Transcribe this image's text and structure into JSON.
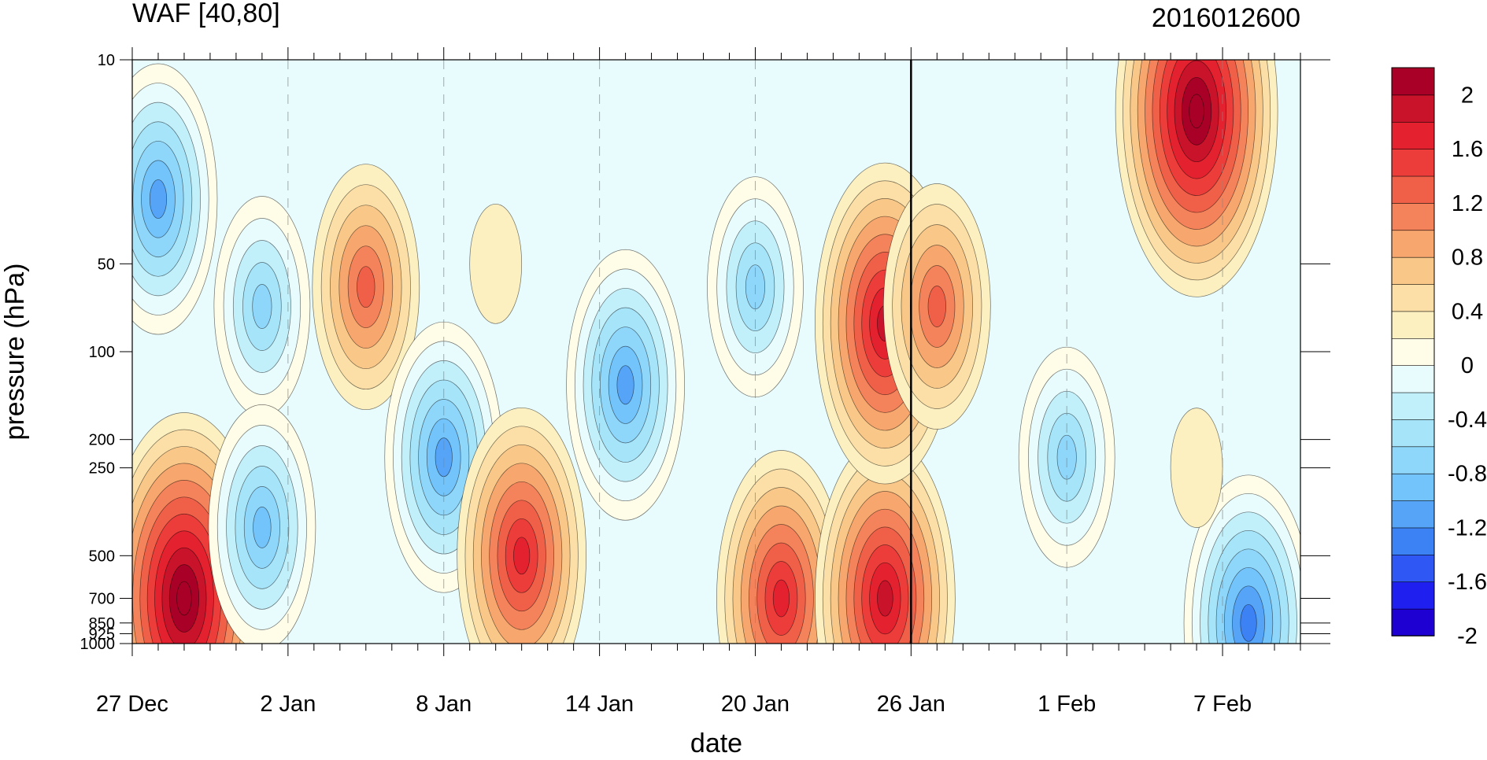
{
  "chart_data": {
    "type": "heatmap",
    "title": "WAF [40,80]",
    "subtitle": "2016012600",
    "xlabel": "date",
    "ylabel": "pressure (hPa)",
    "x_ticks": [
      "27 Dec",
      "2 Jan",
      "8 Jan",
      "14 Jan",
      "20 Jan",
      "26 Jan",
      "1 Feb",
      "7 Feb"
    ],
    "x_range": [
      "2015-12-27",
      "2016-02-10"
    ],
    "y_ticks": [
      10,
      50,
      100,
      200,
      250,
      500,
      700,
      850,
      925,
      1000
    ],
    "y_ticklabels": [
      "10",
      "50",
      "100",
      "200",
      "250",
      "500",
      "700",
      "850",
      "925",
      "1000"
    ],
    "y_scale": "log",
    "y_range": [
      1000,
      10
    ],
    "marker_date": "2016-01-26",
    "colorbar": {
      "labels": [
        "2",
        "1.6",
        "1.2",
        "0.8",
        "0.4",
        "0",
        "-0.4",
        "-0.8",
        "-1.2",
        "-1.6",
        "-2"
      ],
      "levels": [
        -2.2,
        -2.0,
        -1.8,
        -1.6,
        -1.4,
        -1.2,
        -1.0,
        -0.8,
        -0.6,
        -0.4,
        -0.2,
        0,
        0.2,
        0.4,
        0.6,
        0.8,
        1.0,
        1.2,
        1.4,
        1.6,
        1.8,
        2.0,
        2.2
      ],
      "colors": [
        "#1e00d2",
        "#1f20f0",
        "#2e57f4",
        "#3d82f4",
        "#56a4f7",
        "#73c4fb",
        "#8fd6fb",
        "#a6e4fa",
        "#c2f0fa",
        "#e8fbfd",
        "#fffde8",
        "#fdf0c0",
        "#fbdfa6",
        "#f9c889",
        "#f7a76e",
        "#f4825a",
        "#f06049",
        "#ec3d3a",
        "#e3212f",
        "#c8132a",
        "#a80026"
      ]
    },
    "features": [
      {
        "date": "2015-12-29",
        "pressure": 700,
        "value": 2.1
      },
      {
        "date": "2015-12-28",
        "pressure": 30,
        "value": -1.3
      },
      {
        "date": "2016-01-01",
        "pressure": 70,
        "value": -1.0
      },
      {
        "date": "2016-01-01",
        "pressure": 400,
        "value": -1.2
      },
      {
        "date": "2016-01-05",
        "pressure": 60,
        "value": 1.2
      },
      {
        "date": "2016-01-08",
        "pressure": 230,
        "value": -1.3
      },
      {
        "date": "2016-01-11",
        "pressure": 500,
        "value": 1.6
      },
      {
        "date": "2016-01-15",
        "pressure": 130,
        "value": -1.4
      },
      {
        "date": "2016-01-21",
        "pressure": 700,
        "value": 1.6
      },
      {
        "date": "2016-01-20",
        "pressure": 60,
        "value": -0.9
      },
      {
        "date": "2016-01-25",
        "pressure": 700,
        "value": 1.9
      },
      {
        "date": "2016-01-25",
        "pressure": 80,
        "value": 1.7
      },
      {
        "date": "2016-01-27",
        "pressure": 70,
        "value": 1.2
      },
      {
        "date": "2016-02-06",
        "pressure": 15,
        "value": 2.1
      },
      {
        "date": "2016-02-08",
        "pressure": 850,
        "value": -1.5
      },
      {
        "date": "2016-02-01",
        "pressure": 230,
        "value": -0.9
      },
      {
        "date": "2016-01-10",
        "pressure": 50,
        "value": 0.1
      },
      {
        "date": "2016-02-06",
        "pressure": 250,
        "value": 0.1
      }
    ]
  }
}
